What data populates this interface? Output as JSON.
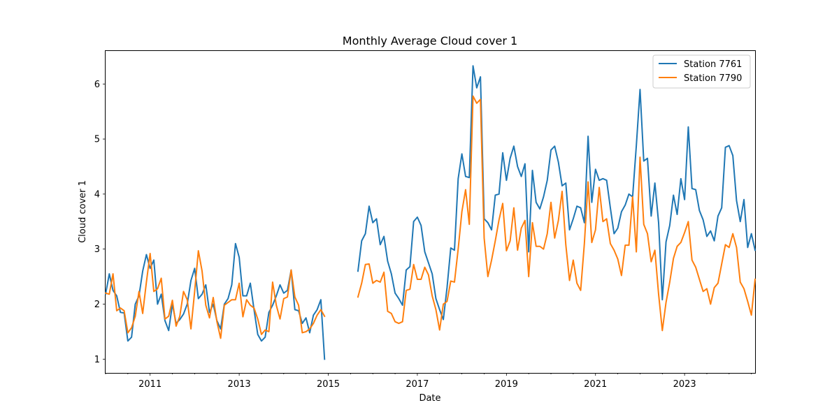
{
  "chart_data": {
    "type": "line",
    "title": "Monthly Average Cloud cover 1",
    "xlabel": "Date",
    "ylabel": "Cloud cover 1",
    "x_start": "2010-01",
    "x_end": "2024-08",
    "x_ticks": [
      "2011-01",
      "2013-01",
      "2015-01",
      "2017-01",
      "2019-01",
      "2021-01",
      "2023-01"
    ],
    "x_tick_labels": [
      "2011",
      "2013",
      "2015",
      "2017",
      "2019",
      "2021",
      "2023"
    ],
    "ylim": [
      0.75,
      6.6
    ],
    "y_ticks": [
      1,
      2,
      3,
      4,
      5,
      6
    ],
    "y_tick_labels": [
      "1",
      "2",
      "3",
      "4",
      "5",
      "6"
    ],
    "grid": false,
    "legend_position": "top-right",
    "series": [
      {
        "name": "Station 7761",
        "color": "#1f77b4",
        "segments": [
          {
            "start": "2010-01",
            "values": [
              2.18,
              2.55,
              2.25,
              2.15,
              1.85,
              1.84,
              1.33,
              1.4,
              2.0,
              2.15,
              2.6,
              2.9,
              2.65,
              2.8,
              2.0,
              2.18,
              1.7,
              1.52,
              2.0,
              1.65,
              1.72,
              1.82,
              2.0,
              2.43,
              2.65,
              2.1,
              2.18,
              2.35,
              1.85,
              2.0,
              1.7,
              1.55,
              2.0,
              2.1,
              2.35,
              3.1,
              2.85,
              2.15,
              2.15,
              2.38,
              1.9,
              1.45,
              1.33,
              1.4,
              1.85,
              1.98,
              2.15,
              2.35,
              2.2,
              2.25,
              2.62,
              1.9,
              1.88,
              1.65,
              1.75,
              1.48,
              1.8,
              1.9,
              2.08,
              1.0
            ]
          },
          {
            "start": "2015-09",
            "values": [
              2.6,
              3.15,
              3.28,
              3.78,
              3.48,
              3.55,
              3.08,
              3.23,
              2.78,
              2.55,
              2.2,
              2.1,
              1.98,
              2.62,
              2.68,
              3.5,
              3.58,
              3.43,
              2.95,
              2.75,
              2.55,
              2.1,
              1.9,
              1.72,
              2.3,
              3.02,
              2.98,
              4.28,
              4.73,
              4.32,
              4.3,
              6.33,
              5.93,
              6.13,
              3.55,
              3.48,
              3.35,
              3.98,
              4.0,
              4.75,
              4.25,
              4.65,
              4.87,
              4.5,
              4.32,
              4.55,
              2.95,
              4.43,
              3.85,
              3.73,
              3.95,
              4.25,
              4.8,
              4.87,
              4.58,
              4.15,
              4.2,
              3.35,
              3.55,
              3.78,
              3.75,
              3.48,
              5.05,
              3.85,
              4.45,
              4.25,
              4.28,
              4.25,
              3.75,
              3.28,
              3.38,
              3.68,
              3.8,
              4.0,
              3.95,
              4.88,
              5.9,
              4.6,
              4.65,
              3.6,
              4.2,
              3.48,
              2.08,
              3.13,
              3.43,
              3.98,
              3.63,
              4.28,
              3.9,
              5.22,
              4.1,
              4.08,
              3.7,
              3.53,
              3.23,
              3.33,
              3.15,
              3.6,
              3.75,
              4.85,
              4.88,
              4.7,
              3.88,
              3.5,
              3.9,
              3.03,
              3.28,
              2.98
            ]
          }
        ]
      },
      {
        "name": "Station 7790",
        "color": "#ff7f0e",
        "segments": [
          {
            "start": "2010-01",
            "values": [
              2.2,
              2.18,
              2.55,
              1.88,
              1.93,
              1.88,
              1.48,
              1.57,
              1.78,
              2.23,
              1.83,
              2.4,
              2.92,
              2.23,
              2.28,
              2.47,
              1.73,
              1.78,
              2.07,
              1.6,
              1.78,
              2.23,
              2.08,
              1.55,
              2.23,
              2.97,
              2.6,
              1.98,
              1.75,
              2.12,
              1.68,
              1.38,
              1.98,
              2.03,
              2.08,
              2.08,
              2.38,
              1.77,
              2.08,
              1.98,
              1.93,
              1.73,
              1.45,
              1.53,
              1.5,
              2.4,
              1.98,
              1.73,
              2.1,
              2.13,
              2.62,
              2.13,
              1.98,
              1.48,
              1.5,
              1.55,
              1.65,
              1.8,
              1.9,
              1.78
            ]
          },
          {
            "start": "2015-09",
            "values": [
              2.13,
              2.38,
              2.72,
              2.73,
              2.38,
              2.43,
              2.4,
              2.58,
              1.87,
              1.83,
              1.68,
              1.65,
              1.68,
              2.25,
              2.27,
              2.72,
              2.45,
              2.45,
              2.67,
              2.53,
              2.15,
              1.9,
              1.53,
              2.0,
              2.05,
              2.42,
              2.4,
              3.0,
              3.68,
              4.08,
              3.45,
              5.78,
              5.65,
              5.72,
              3.2,
              2.5,
              2.8,
              3.15,
              3.53,
              3.83,
              2.97,
              3.15,
              3.75,
              2.98,
              3.38,
              3.52,
              2.5,
              3.48,
              3.05,
              3.05,
              3.0,
              3.28,
              3.85,
              3.2,
              3.52,
              4.05,
              3.08,
              2.43,
              2.8,
              2.38,
              2.25,
              3.1,
              4.22,
              3.12,
              3.35,
              4.12,
              3.5,
              3.55,
              3.1,
              2.98,
              2.82,
              2.52,
              3.07,
              3.07,
              3.95,
              2.95,
              4.67,
              3.45,
              3.28,
              2.77,
              2.98,
              2.18,
              1.52,
              2.03,
              2.4,
              2.83,
              3.05,
              3.12,
              3.3,
              3.5,
              2.8,
              2.67,
              2.45,
              2.23,
              2.28,
              2.0,
              2.3,
              2.38,
              2.73,
              3.08,
              3.03,
              3.28,
              3.03,
              2.4,
              2.28,
              2.05,
              1.8,
              2.45
            ]
          }
        ]
      }
    ]
  }
}
